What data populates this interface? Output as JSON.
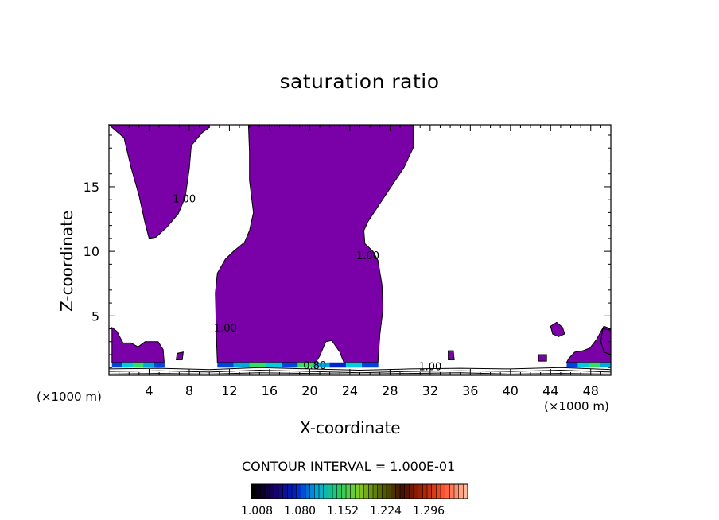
{
  "chart_data": {
    "type": "contour",
    "title": "saturation ratio",
    "xlabel": "X-coordinate",
    "ylabel": "Z-coordinate",
    "x_unit": "(×1000 m)",
    "x_unit_right": "(×1000 m)",
    "xlim": [
      0,
      50
    ],
    "ylim": [
      0.4,
      19.8
    ],
    "xticks": [
      4,
      8,
      12,
      16,
      20,
      24,
      28,
      32,
      36,
      40,
      44,
      48
    ],
    "yticks": [
      5,
      10,
      15
    ],
    "contour_interval_text": "CONTOUR INTERVAL = 1.000E-01",
    "contour_labels": [
      {
        "text": "1.00",
        "x": 7.5,
        "z": 13.8
      },
      {
        "text": "1.00",
        "x": 25.8,
        "z": 9.4
      },
      {
        "text": "1.00",
        "x": 11.6,
        "z": 3.8
      },
      {
        "text": "0.80",
        "x": 20.5,
        "z": 0.9
      },
      {
        "text": "1.00",
        "x": 32.0,
        "z": 0.8
      }
    ],
    "fill_color": "#7a00a8",
    "colorbar": {
      "ticks": [
        "1.008",
        "1.080",
        "1.152",
        "1.224",
        "1.296"
      ],
      "colors": [
        "#000000",
        "#1a0066",
        "#0022cc",
        "#00aadd",
        "#22cc66",
        "#88cc22",
        "#556600",
        "#441100",
        "#aa2200",
        "#ff5533",
        "#ffbb99"
      ]
    },
    "regions": [
      {
        "name": "left-cap",
        "points": [
          [
            0.0,
            19.8
          ],
          [
            1.5,
            18.8
          ],
          [
            2.2,
            16.5
          ],
          [
            3.0,
            14.3
          ],
          [
            3.6,
            12.2
          ],
          [
            4.0,
            11.0
          ],
          [
            4.7,
            11.1
          ],
          [
            5.8,
            11.9
          ],
          [
            6.9,
            12.9
          ],
          [
            7.6,
            14.2
          ],
          [
            8.0,
            16.4
          ],
          [
            8.2,
            18.2
          ],
          [
            9.3,
            19.2
          ],
          [
            10.0,
            19.6
          ],
          [
            10.0,
            19.8
          ]
        ]
      },
      {
        "name": "central-column",
        "points": [
          [
            14.0,
            19.8
          ],
          [
            30.3,
            19.8
          ],
          [
            30.3,
            18.0
          ],
          [
            29.4,
            16.5
          ],
          [
            27.5,
            14.3
          ],
          [
            25.8,
            12.3
          ],
          [
            25.4,
            11.6
          ],
          [
            25.5,
            10.6
          ],
          [
            26.3,
            10.0
          ],
          [
            26.8,
            9.3
          ],
          [
            27.2,
            7.4
          ],
          [
            27.3,
            5.5
          ],
          [
            27.0,
            3.6
          ],
          [
            26.8,
            1.4
          ],
          [
            23.4,
            1.4
          ],
          [
            23.0,
            2.2
          ],
          [
            22.2,
            3.1
          ],
          [
            21.6,
            3.0
          ],
          [
            21.0,
            1.9
          ],
          [
            20.6,
            1.4
          ],
          [
            10.8,
            1.4
          ],
          [
            10.7,
            3.5
          ],
          [
            10.6,
            6.8
          ],
          [
            10.8,
            8.3
          ],
          [
            11.6,
            9.4
          ],
          [
            12.4,
            10.0
          ],
          [
            13.5,
            10.7
          ],
          [
            14.0,
            11.6
          ],
          [
            14.4,
            13.0
          ],
          [
            14.0,
            15.5
          ],
          [
            14.0,
            17.7
          ],
          [
            13.9,
            19.8
          ]
        ]
      },
      {
        "name": "left-blob",
        "points": [
          [
            0.3,
            1.4
          ],
          [
            5.5,
            1.4
          ],
          [
            5.4,
            2.4
          ],
          [
            4.9,
            3.0
          ],
          [
            3.6,
            3.0
          ],
          [
            2.9,
            2.6
          ],
          [
            2.2,
            2.9
          ],
          [
            1.4,
            2.9
          ],
          [
            0.8,
            3.8
          ],
          [
            0.3,
            4.1
          ]
        ]
      },
      {
        "name": "right-blob",
        "points": [
          [
            45.6,
            1.4
          ],
          [
            50.0,
            1.4
          ],
          [
            50.0,
            4.0
          ],
          [
            49.3,
            4.2
          ],
          [
            48.6,
            3.2
          ],
          [
            47.9,
            2.5
          ],
          [
            47.2,
            2.3
          ],
          [
            46.4,
            2.2
          ],
          [
            45.8,
            1.7
          ]
        ]
      },
      {
        "name": "right-small-blob",
        "points": [
          [
            44.0,
            4.2
          ],
          [
            44.6,
            4.5
          ],
          [
            45.2,
            4.1
          ],
          [
            45.4,
            3.6
          ],
          [
            44.8,
            3.4
          ],
          [
            44.2,
            3.6
          ]
        ]
      },
      {
        "name": "far-right-lobe",
        "points": [
          [
            49.2,
            4.0
          ],
          [
            50.0,
            3.9
          ],
          [
            50.0,
            2.0
          ],
          [
            49.3,
            2.2
          ],
          [
            49.0,
            3.0
          ]
        ]
      },
      {
        "name": "specks",
        "points": [
          [
            6.8,
            2.1
          ],
          [
            7.4,
            2.2
          ],
          [
            7.3,
            1.6
          ],
          [
            6.7,
            1.6
          ]
        ]
      },
      {
        "name": "speck-b",
        "points": [
          [
            33.8,
            2.3
          ],
          [
            34.3,
            2.3
          ],
          [
            34.4,
            1.6
          ],
          [
            33.8,
            1.6
          ]
        ]
      },
      {
        "name": "speck-c",
        "points": [
          [
            42.8,
            2.0
          ],
          [
            43.6,
            2.0
          ],
          [
            43.6,
            1.5
          ],
          [
            42.8,
            1.5
          ]
        ]
      }
    ],
    "bands": [
      {
        "x0": 0.3,
        "x1": 5.5,
        "z0": 1.0,
        "z1": 1.4,
        "colors": [
          "#0044dd",
          "#00ccdd",
          "#33dd66",
          "#00aadd",
          "#0044dd"
        ]
      },
      {
        "x0": 10.8,
        "x1": 26.8,
        "z0": 1.0,
        "z1": 1.4,
        "colors": [
          "#0044dd",
          "#00aadd",
          "#33dd66",
          "#00ccdd",
          "#0044dd",
          "#33dd66",
          "#00aadd",
          "#0022cc",
          "#00ccdd",
          "#0044dd"
        ]
      },
      {
        "x0": 45.6,
        "x1": 50.0,
        "z0": 1.0,
        "z1": 1.4,
        "colors": [
          "#0044dd",
          "#00ccdd",
          "#33dd66",
          "#00aadd"
        ]
      }
    ],
    "boundary_lines": [
      {
        "z": [
          0.9,
          0.95,
          0.85,
          1.0,
          0.9,
          0.8,
          0.9,
          0.95,
          0.9,
          1.0,
          0.85
        ]
      },
      {
        "z": [
          0.7,
          0.75,
          0.65,
          0.8,
          0.7,
          0.6,
          0.7,
          0.75,
          0.7,
          0.8,
          0.65
        ]
      },
      {
        "z": [
          0.5,
          0.55,
          0.5,
          0.6,
          0.55,
          0.5,
          0.55,
          0.6,
          0.5,
          0.55,
          0.5
        ]
      }
    ]
  }
}
